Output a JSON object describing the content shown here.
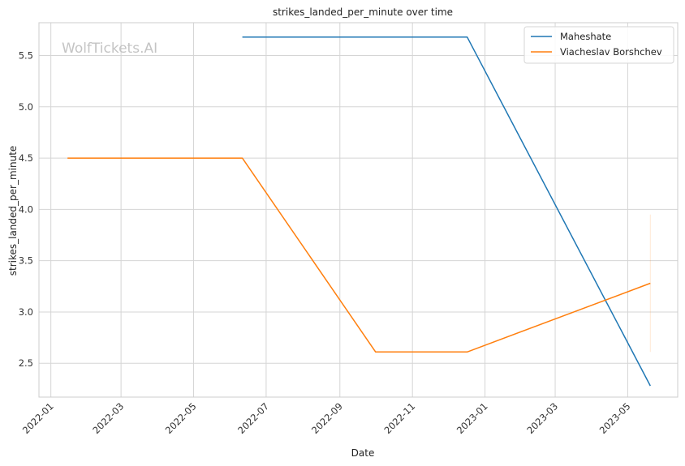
{
  "chart_data": {
    "type": "line",
    "title": "strikes_landed_per_minute over time",
    "xlabel": "Date",
    "ylabel": "strikes_landed_per_minute",
    "watermark": "WolfTickets.AI",
    "x_ticks": [
      "2022-01",
      "2022-03",
      "2022-05",
      "2022-07",
      "2022-09",
      "2022-11",
      "2023-01",
      "2023-03",
      "2023-05"
    ],
    "y_ticks": [
      "2.5",
      "3.0",
      "3.5",
      "4.0",
      "4.5",
      "5.0",
      "5.5"
    ],
    "xlim": [
      "2021-12-22",
      "2023-06-12"
    ],
    "ylim": [
      2.17,
      5.82
    ],
    "grid": true,
    "legend_position": "top-right",
    "series": [
      {
        "name": "Maheshate",
        "color": "#1f77b4",
        "points": [
          {
            "x": "2022-06-11",
            "y": 5.68
          },
          {
            "x": "2022-12-17",
            "y": 5.68
          },
          {
            "x": "2023-05-20",
            "y": 2.28
          }
        ]
      },
      {
        "name": "Viacheslav Borshchev",
        "color": "#ff7f0e",
        "points": [
          {
            "x": "2022-01-15",
            "y": 4.5
          },
          {
            "x": "2022-06-11",
            "y": 4.5
          },
          {
            "x": "2022-10-01",
            "y": 2.61
          },
          {
            "x": "2022-12-17",
            "y": 2.61
          },
          {
            "x": "2023-05-20",
            "y": 3.28
          }
        ],
        "band": {
          "x": "2023-05-20",
          "low": 2.61,
          "high": 3.95
        }
      }
    ]
  }
}
